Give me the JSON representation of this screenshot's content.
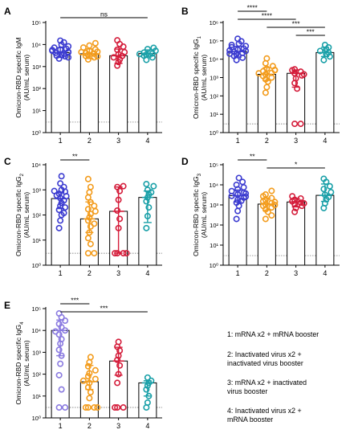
{
  "colors": {
    "g1": "#3b3bd0",
    "g2": "#f39c1d",
    "g3": "#d41c3a",
    "g4": "#1aa0a8",
    "g1_light": "#8a7ae0"
  },
  "legend": [
    "1: mRNA x2 + mRNA booster",
    "2: Inactivated virus x2 +",
    "inactivated virus booster",
    "3: mRNA x2 + inactivated",
    "virus booster",
    "4: Inactivated virus x2 +",
    "mRNA booster"
  ],
  "chart_data": [
    {
      "panel": "A",
      "type": "scatter",
      "ylabel_main": "Omicron-RBD specific IgM",
      "ylabel_sub": "(AU/mL serum)",
      "ylabel_subscript": "",
      "categories": [
        "1",
        "2",
        "3",
        "4"
      ],
      "yscale": "log",
      "ylim_exp": [
        0,
        5
      ],
      "ytick_labels": [
        "10⁰",
        "10¹",
        "10²",
        "10³",
        "10⁴",
        "10⁵"
      ],
      "bar_values": [
        4300,
        3800,
        3100,
        3900
      ],
      "error_bars": [
        [
          2600,
          7200
        ],
        [
          2300,
          6300
        ],
        [
          1400,
          6200
        ],
        [
          2700,
          5700
        ]
      ],
      "points": [
        [
          2300,
          2900,
          3300,
          3800,
          4200,
          4600,
          5200,
          5900,
          6400,
          7200,
          8300,
          9800,
          12500,
          15000,
          3100,
          4400,
          5600,
          2600
        ],
        [
          2100,
          2600,
          3000,
          3400,
          3800,
          4100,
          4700,
          5300,
          6000,
          7300,
          9000,
          11500,
          2900,
          4500
        ],
        [
          1100,
          1600,
          2100,
          3000,
          3600,
          4500,
          5800,
          8000,
          10500,
          15500,
          2600
        ],
        [
          2000,
          2600,
          3100,
          3500,
          3900,
          4300,
          5200,
          6200,
          7100,
          3700
        ]
      ],
      "dotted_ref": 3,
      "sig": [
        {
          "from": 1,
          "to": 4,
          "label": "ns"
        }
      ]
    },
    {
      "panel": "B",
      "type": "scatter",
      "ylabel_main": "Omicron-RBD specific IgG",
      "ylabel_sub": "(AU/mL serum)",
      "ylabel_subscript": "1",
      "categories": [
        "1",
        "2",
        "3",
        "4"
      ],
      "yscale": "log",
      "ylim_exp": [
        0,
        6
      ],
      "ytick_labels": [
        "10⁰",
        "10¹",
        "10²",
        "10³",
        "10⁴",
        "10⁵",
        "10⁶"
      ],
      "bar_values": [
        26000,
        1500,
        1700,
        23000
      ],
      "error_bars": [
        [
          13000,
          50000
        ],
        [
          700,
          3500
        ],
        [
          300,
          2600
        ],
        [
          14000,
          44000
        ]
      ],
      "points": [
        [
          9000,
          12000,
          15000,
          19000,
          22000,
          25000,
          28000,
          33000,
          38000,
          45000,
          52000,
          70000,
          95000,
          130000,
          30000,
          60000,
          20000
        ],
        [
          150,
          300,
          600,
          800,
          1000,
          1200,
          1500,
          1800,
          2200,
          2600,
          3000,
          4200,
          6000,
          11000,
          1700,
          2500
        ],
        [
          3,
          3,
          250,
          500,
          900,
          1300,
          1700,
          2100,
          2500,
          2800,
          1500
        ],
        [
          9000,
          14000,
          19000,
          23000,
          28000,
          34000,
          44000,
          60000
        ]
      ],
      "dotted_ref": 3,
      "sig": [
        {
          "from": 1,
          "to": 2,
          "label": "****"
        },
        {
          "from": 1,
          "to": 3,
          "label": "****"
        },
        {
          "from": 2,
          "to": 4,
          "label": "***"
        },
        {
          "from": 3,
          "to": 4,
          "label": "***"
        }
      ]
    },
    {
      "panel": "C",
      "type": "scatter",
      "ylabel_main": "Omicron-RBD specific IgG",
      "ylabel_sub": "(AU/mL serum)",
      "ylabel_subscript": "2",
      "categories": [
        "1",
        "2",
        "3",
        "4"
      ],
      "yscale": "log",
      "ylim_exp": [
        0,
        4
      ],
      "ytick_labels": [
        "10⁰",
        "10¹",
        "10²",
        "10³",
        "10⁴"
      ],
      "bar_values": [
        450,
        70,
        140,
        500
      ],
      "error_bars": [
        [
          180,
          800
        ],
        [
          20,
          330
        ],
        [
          3,
          1300
        ],
        [
          50,
          900
        ]
      ],
      "points": [
        [
          30,
          60,
          100,
          160,
          230,
          300,
          380,
          470,
          560,
          700,
          850,
          1000,
          1300,
          1800,
          3500,
          120,
          200,
          600,
          900
        ],
        [
          3,
          3,
          7,
          12,
          20,
          35,
          60,
          80,
          110,
          170,
          230,
          320,
          500,
          800,
          1300,
          2700,
          45,
          140
        ],
        [
          3,
          3,
          3,
          3,
          30,
          70,
          150,
          400,
          900,
          1300,
          1400
        ],
        [
          30,
          90,
          200,
          350,
          500,
          650,
          800,
          1000,
          1400,
          1700
        ]
      ],
      "dotted_ref": 3,
      "sig": [
        {
          "from": 1,
          "to": 2,
          "label": "**"
        }
      ]
    },
    {
      "panel": "D",
      "type": "scatter",
      "ylabel_main": "Omicron-RBD specific IgG",
      "ylabel_sub": "(AU/mL serum)",
      "ylabel_subscript": "3",
      "categories": [
        "1",
        "2",
        "3",
        "4"
      ],
      "yscale": "log",
      "ylim_exp": [
        0,
        5
      ],
      "ytick_labels": [
        "10⁰",
        "10¹",
        "10²",
        "10³",
        "10⁴",
        "10⁵"
      ],
      "bar_values": [
        2900,
        1100,
        1400,
        3000
      ],
      "error_bars": [
        [
          1400,
          5500
        ],
        [
          550,
          2200
        ],
        [
          800,
          2100
        ],
        [
          1500,
          11000
        ]
      ],
      "points": [
        [
          200,
          500,
          900,
          1300,
          1800,
          2300,
          2800,
          3300,
          4000,
          4900,
          6000,
          7500,
          10000,
          14000,
          22000,
          1600,
          2600,
          3700
        ],
        [
          200,
          300,
          450,
          600,
          750,
          900,
          1050,
          1250,
          1500,
          1800,
          2200,
          2700,
          3300,
          5000,
          1000,
          1400
        ],
        [
          450,
          700,
          900,
          1100,
          1300,
          1500,
          1800,
          2100,
          2700,
          1200
        ],
        [
          700,
          1200,
          1900,
          2500,
          3200,
          4300,
          6200,
          8500,
          14000,
          20000
        ]
      ],
      "dotted_ref": 3,
      "sig": [
        {
          "from": 1,
          "to": 2,
          "label": "**"
        },
        {
          "from": 2,
          "to": 4,
          "label": "*"
        }
      ]
    },
    {
      "panel": "E",
      "type": "scatter",
      "ylabel_main": "Omicron-RBD specific IgG",
      "ylabel_sub": "(AU/mL serum)",
      "ylabel_subscript": "4",
      "categories": [
        "1",
        "2",
        "3",
        "4"
      ],
      "yscale": "log",
      "ylim_exp": [
        0,
        5
      ],
      "ytick_labels": [
        "10⁰",
        "10¹",
        "10²",
        "10³",
        "10⁴",
        "10⁵"
      ],
      "bar_values": [
        10000,
        45,
        400,
        40
      ],
      "error_bars": [
        [
          700,
          30000
        ],
        [
          20,
          250
        ],
        [
          90,
          1700
        ],
        [
          10,
          50
        ]
      ],
      "points": [
        [
          3,
          3,
          20,
          90,
          300,
          700,
          1300,
          2500,
          4000,
          6500,
          10000,
          14000,
          20000,
          28000,
          40000,
          60000,
          9000
        ],
        [
          3,
          3,
          3,
          3,
          8,
          15,
          25,
          40,
          60,
          80,
          110,
          150,
          230,
          350,
          600,
          50
        ],
        [
          3,
          3,
          3,
          40,
          100,
          250,
          450,
          700,
          1200,
          1800,
          3000
        ],
        [
          3,
          5,
          10,
          20,
          30,
          40,
          50,
          70
        ]
      ],
      "dotted_ref": 3,
      "sig": [
        {
          "from": 1,
          "to": 2,
          "label": "***"
        },
        {
          "from": 1,
          "to": 4,
          "label": "***"
        }
      ]
    }
  ]
}
